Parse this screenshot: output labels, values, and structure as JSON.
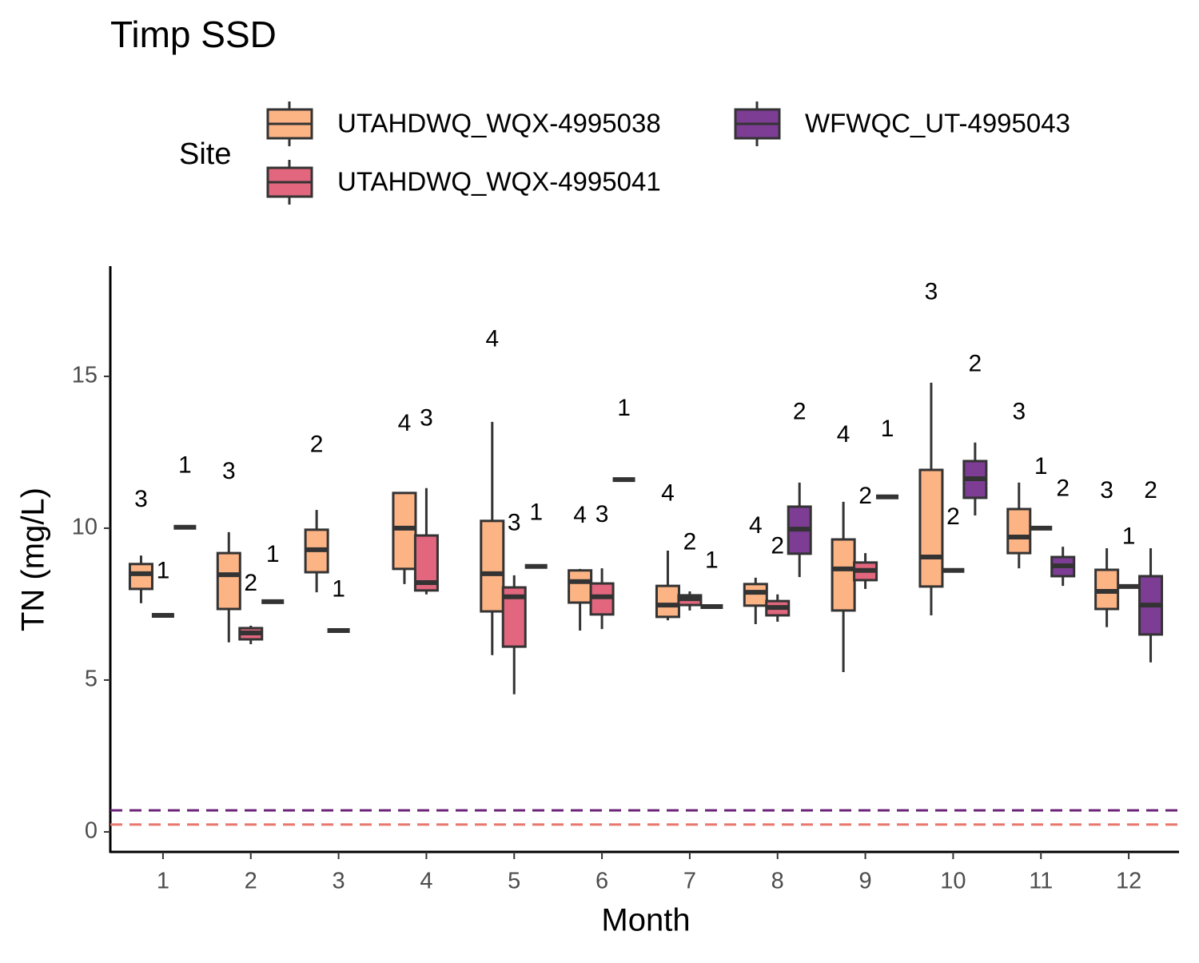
{
  "chart_data": {
    "type": "boxplot",
    "title": "Timp SSD",
    "x_label": "Month",
    "y_label": "TN (mg/L)",
    "legend_title": "Site",
    "categories": [
      "1",
      "2",
      "3",
      "4",
      "5",
      "6",
      "7",
      "8",
      "9",
      "10",
      "11",
      "12"
    ],
    "ylim": [
      -0.66,
      18.63
    ],
    "yticks": [
      0,
      5,
      10,
      15
    ],
    "outline_color": "#333333",
    "series": [
      {
        "name": "UTAHDWQ_WQX-4995038",
        "color": "#fdb485",
        "min": [
          7.53,
          6.24,
          7.89,
          8.16,
          5.82,
          6.63,
          6.97,
          6.84,
          5.26,
          7.13,
          8.68,
          6.74
        ],
        "q1": [
          8.0,
          7.34,
          8.55,
          8.66,
          7.26,
          7.55,
          7.08,
          7.45,
          7.29,
          8.08,
          9.18,
          7.34
        ],
        "median": [
          8.5,
          8.47,
          9.29,
          10.0,
          8.5,
          8.24,
          7.47,
          7.89,
          8.66,
          9.05,
          9.71,
          7.92
        ],
        "q3": [
          8.82,
          9.18,
          9.95,
          11.16,
          10.24,
          8.61,
          8.1,
          8.16,
          9.63,
          11.92,
          10.63,
          8.63
        ],
        "max": [
          9.1,
          9.87,
          10.6,
          11.18,
          13.5,
          8.66,
          9.26,
          8.37,
          10.87,
          14.79,
          11.5,
          9.34
        ],
        "n": [
          3,
          3,
          2,
          4,
          4,
          4,
          4,
          4,
          4,
          3,
          3,
          3
        ]
      },
      {
        "name": "UTAHDWQ_WQX-4995041",
        "color": "#e1667e",
        "min": [
          7.13,
          6.18,
          6.63,
          7.82,
          4.53,
          6.68,
          7.29,
          6.92,
          8.0,
          8.61,
          10.0,
          8.08
        ],
        "q1": [
          7.13,
          6.34,
          6.63,
          7.95,
          6.1,
          7.16,
          7.47,
          7.13,
          8.29,
          8.61,
          10.0,
          8.08
        ],
        "median": [
          7.13,
          6.55,
          6.63,
          8.21,
          7.74,
          7.74,
          7.68,
          7.39,
          8.61,
          8.61,
          10.0,
          8.08
        ],
        "q3": [
          7.13,
          6.71,
          6.63,
          9.76,
          8.05,
          8.18,
          7.79,
          7.6,
          8.87,
          8.61,
          10.0,
          8.08
        ],
        "max": [
          7.13,
          6.79,
          6.63,
          11.32,
          8.45,
          8.68,
          7.92,
          7.82,
          9.18,
          8.61,
          10.0,
          8.08
        ],
        "n": [
          1,
          2,
          1,
          3,
          3,
          3,
          2,
          2,
          2,
          2,
          1,
          1
        ]
      },
      {
        "name": "WFWQC_UT-4995043",
        "color": "#7d3d94",
        "min": [
          10.03,
          7.58,
          null,
          null,
          8.74,
          11.6,
          7.42,
          8.39,
          11.03,
          10.42,
          8.1,
          5.58
        ],
        "q1": [
          10.03,
          7.58,
          null,
          null,
          8.74,
          11.6,
          7.42,
          9.16,
          11.03,
          11.0,
          8.42,
          6.5
        ],
        "median": [
          10.03,
          7.58,
          null,
          null,
          8.74,
          11.6,
          7.42,
          9.97,
          11.03,
          11.63,
          8.76,
          7.47
        ],
        "q3": [
          10.03,
          7.58,
          null,
          null,
          8.74,
          11.6,
          7.42,
          10.71,
          11.03,
          12.21,
          9.05,
          8.42
        ],
        "max": [
          10.03,
          7.58,
          null,
          null,
          8.74,
          11.6,
          7.42,
          11.5,
          11.03,
          12.82,
          9.39,
          9.34
        ],
        "n": [
          1,
          1,
          null,
          null,
          1,
          1,
          1,
          2,
          1,
          2,
          2,
          2
        ]
      }
    ],
    "reference_lines": [
      {
        "value": 0.71,
        "color": "#6b2478"
      },
      {
        "value": 0.24,
        "color": "#e8776c"
      }
    ]
  }
}
